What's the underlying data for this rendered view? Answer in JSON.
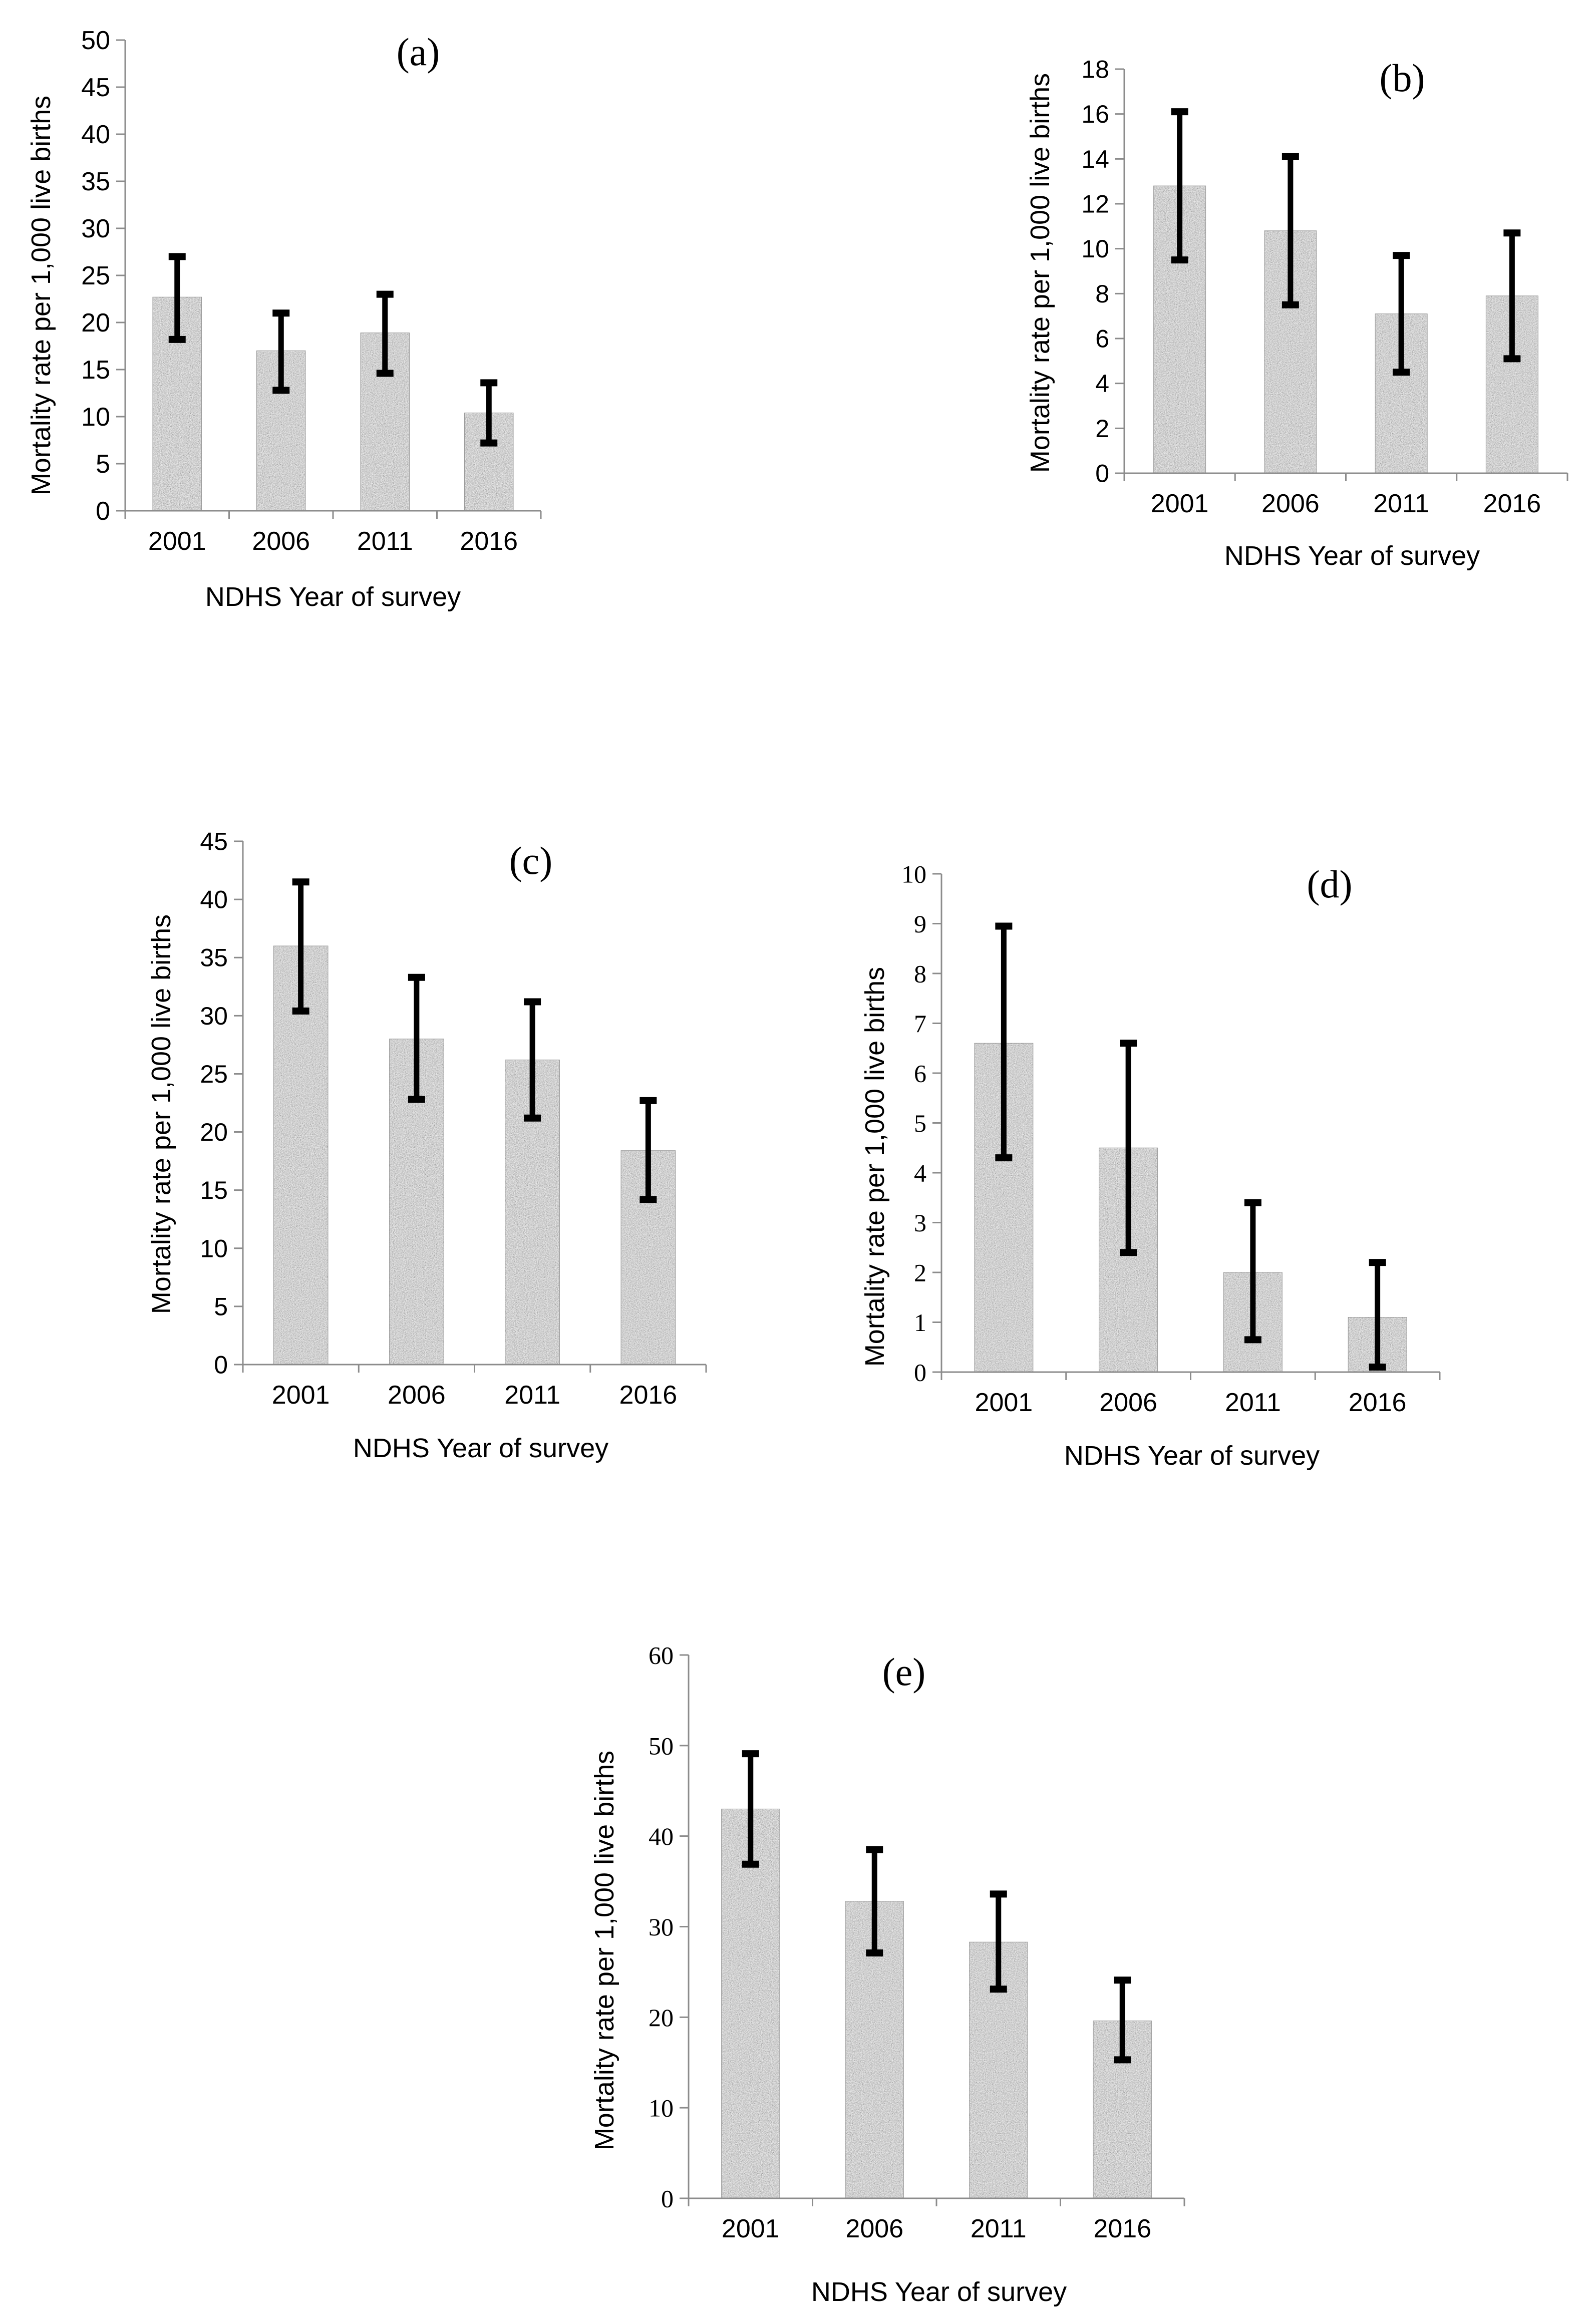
{
  "colors": {
    "axis": "#8c8c8c",
    "error_bar": "#000000",
    "text": "#000000",
    "bar_light": "#dcdcdc",
    "bar_dark": "#2a2a2a"
  },
  "chart_data": [
    {
      "id": "a",
      "type": "bar",
      "title": "(a)",
      "xlabel": "NDHS Year of survey",
      "ylabel": "Mortality rate per 1,000 live births",
      "categories": [
        "2001",
        "2006",
        "2011",
        "2016"
      ],
      "values": [
        22.7,
        17.0,
        18.9,
        10.4
      ],
      "error_low": [
        18.2,
        12.8,
        14.6,
        7.2
      ],
      "error_high": [
        27.0,
        21.0,
        23.0,
        13.6
      ],
      "ylim": [
        0,
        50
      ],
      "ystep": 5,
      "yticks": [
        "0",
        "5",
        "10",
        "15",
        "20",
        "25",
        "30",
        "35",
        "40",
        "45",
        "50"
      ],
      "tick_font": "sans"
    },
    {
      "id": "b",
      "type": "bar",
      "title": "(b)",
      "xlabel": "NDHS Year of survey",
      "ylabel": "Mortality rate per 1,000 live births",
      "categories": [
        "2001",
        "2006",
        "2011",
        "2016"
      ],
      "values": [
        12.8,
        10.8,
        7.1,
        7.9
      ],
      "error_low": [
        9.5,
        7.5,
        4.5,
        5.1
      ],
      "error_high": [
        16.1,
        14.1,
        9.7,
        10.7
      ],
      "ylim": [
        0,
        18
      ],
      "ystep": 2,
      "yticks": [
        "0",
        "2",
        "4",
        "6",
        "8",
        "10",
        "12",
        "14",
        "16",
        "18"
      ],
      "tick_font": "sans"
    },
    {
      "id": "c",
      "type": "bar",
      "title": "(c)",
      "xlabel": "NDHS Year of survey",
      "ylabel": "Mortality rate per 1,000 live births",
      "categories": [
        "2001",
        "2006",
        "2011",
        "2016"
      ],
      "values": [
        36.0,
        28.0,
        26.2,
        18.4
      ],
      "error_low": [
        30.4,
        22.8,
        21.2,
        14.2
      ],
      "error_high": [
        41.5,
        33.3,
        31.2,
        22.7
      ],
      "ylim": [
        0,
        45
      ],
      "ystep": 5,
      "yticks": [
        "0",
        "5",
        "10",
        "15",
        "20",
        "25",
        "30",
        "35",
        "40",
        "45"
      ],
      "tick_font": "sans"
    },
    {
      "id": "d",
      "type": "bar",
      "title": "(d)",
      "xlabel": "NDHS Year of survey",
      "ylabel": "Mortality rate per 1,000 live births",
      "categories": [
        "2001",
        "2006",
        "2011",
        "2016"
      ],
      "values": [
        6.6,
        4.5,
        2.0,
        1.1
      ],
      "error_low": [
        4.3,
        2.4,
        0.65,
        0.1
      ],
      "error_high": [
        8.95,
        6.6,
        3.4,
        2.2
      ],
      "ylim": [
        0,
        10
      ],
      "ystep": 1,
      "yticks": [
        "0",
        "1",
        "2",
        "3",
        "4",
        "5",
        "6",
        "7",
        "8",
        "9",
        "10"
      ],
      "tick_font": "serif"
    },
    {
      "id": "e",
      "type": "bar",
      "title": "(e)",
      "xlabel": "NDHS Year of survey",
      "ylabel": "Mortality rate per 1,000 live births",
      "categories": [
        "2001",
        "2006",
        "2011",
        "2016"
      ],
      "values": [
        43.0,
        32.8,
        28.3,
        19.6
      ],
      "error_low": [
        36.9,
        27.1,
        23.1,
        15.3
      ],
      "error_high": [
        49.1,
        38.5,
        33.6,
        24.1
      ],
      "ylim": [
        0,
        60
      ],
      "ystep": 10,
      "yticks": [
        "0",
        "10",
        "20",
        "30",
        "40",
        "50",
        "60"
      ],
      "tick_font": "serif"
    }
  ]
}
